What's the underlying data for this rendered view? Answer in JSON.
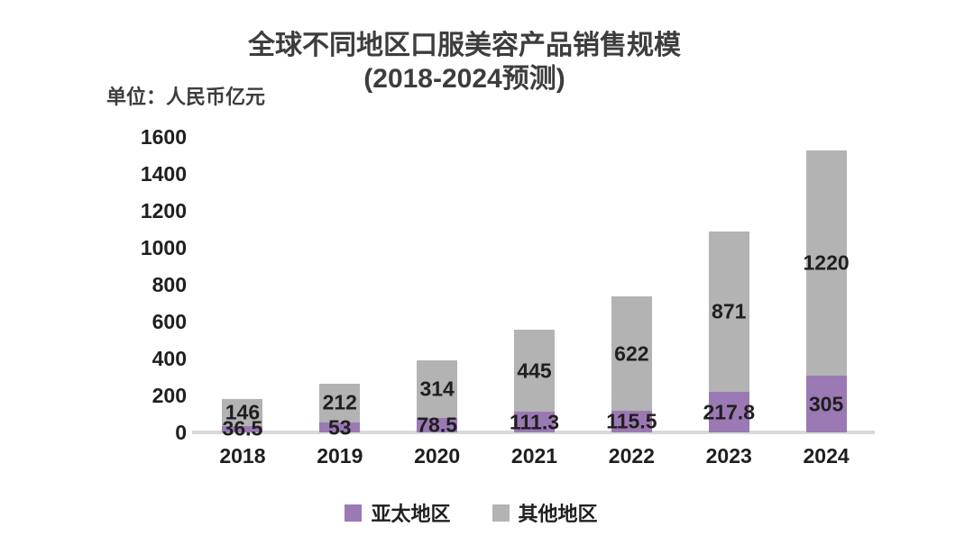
{
  "title": {
    "line1": "全球不同地区口服美容产品销售规模",
    "line2": "(2018-2024预测)"
  },
  "unit_label": "单位：人民币亿元",
  "colors": {
    "apac": "#9b79b4",
    "other": "#b3b3b3",
    "axis_line": "#d9d9d9",
    "title_text": "#3d3d3d",
    "label_text": "#1f1f1f"
  },
  "chart_data": {
    "type": "bar",
    "stacked": true,
    "title": "全球不同地区口服美容产品销售规模 (2018-2024预测)",
    "unit": "单位：人民币亿元",
    "categories": [
      "2018",
      "2019",
      "2020",
      "2021",
      "2022",
      "2023",
      "2024"
    ],
    "series": [
      {
        "name": "亚太地区",
        "color": "#9b79b4",
        "values": [
          36.5,
          53,
          78.5,
          111.3,
          115.5,
          217.8,
          305
        ]
      },
      {
        "name": "其他地区",
        "color": "#b3b3b3",
        "values": [
          146,
          212,
          314,
          445,
          622,
          871,
          1220
        ]
      }
    ],
    "ylim": [
      0,
      1600
    ],
    "yticks": [
      0,
      200,
      400,
      600,
      800,
      1000,
      1200,
      1400,
      1600
    ],
    "grid": false,
    "legend_position": "bottom"
  }
}
